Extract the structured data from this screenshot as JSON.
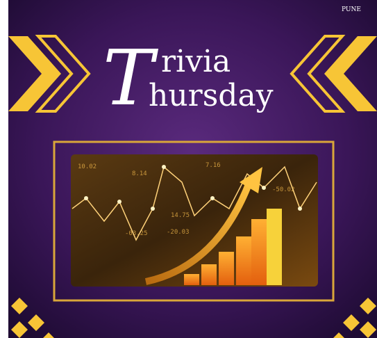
{
  "poster": {
    "title": {
      "initial": "T",
      "line1": "rivia",
      "line2": "hursday"
    },
    "brand": "PUNE",
    "figure_labels": [
      "10.02",
      "8.14",
      "7.16",
      "-50.02",
      "-03.25",
      "-20.03",
      "14.75"
    ]
  }
}
